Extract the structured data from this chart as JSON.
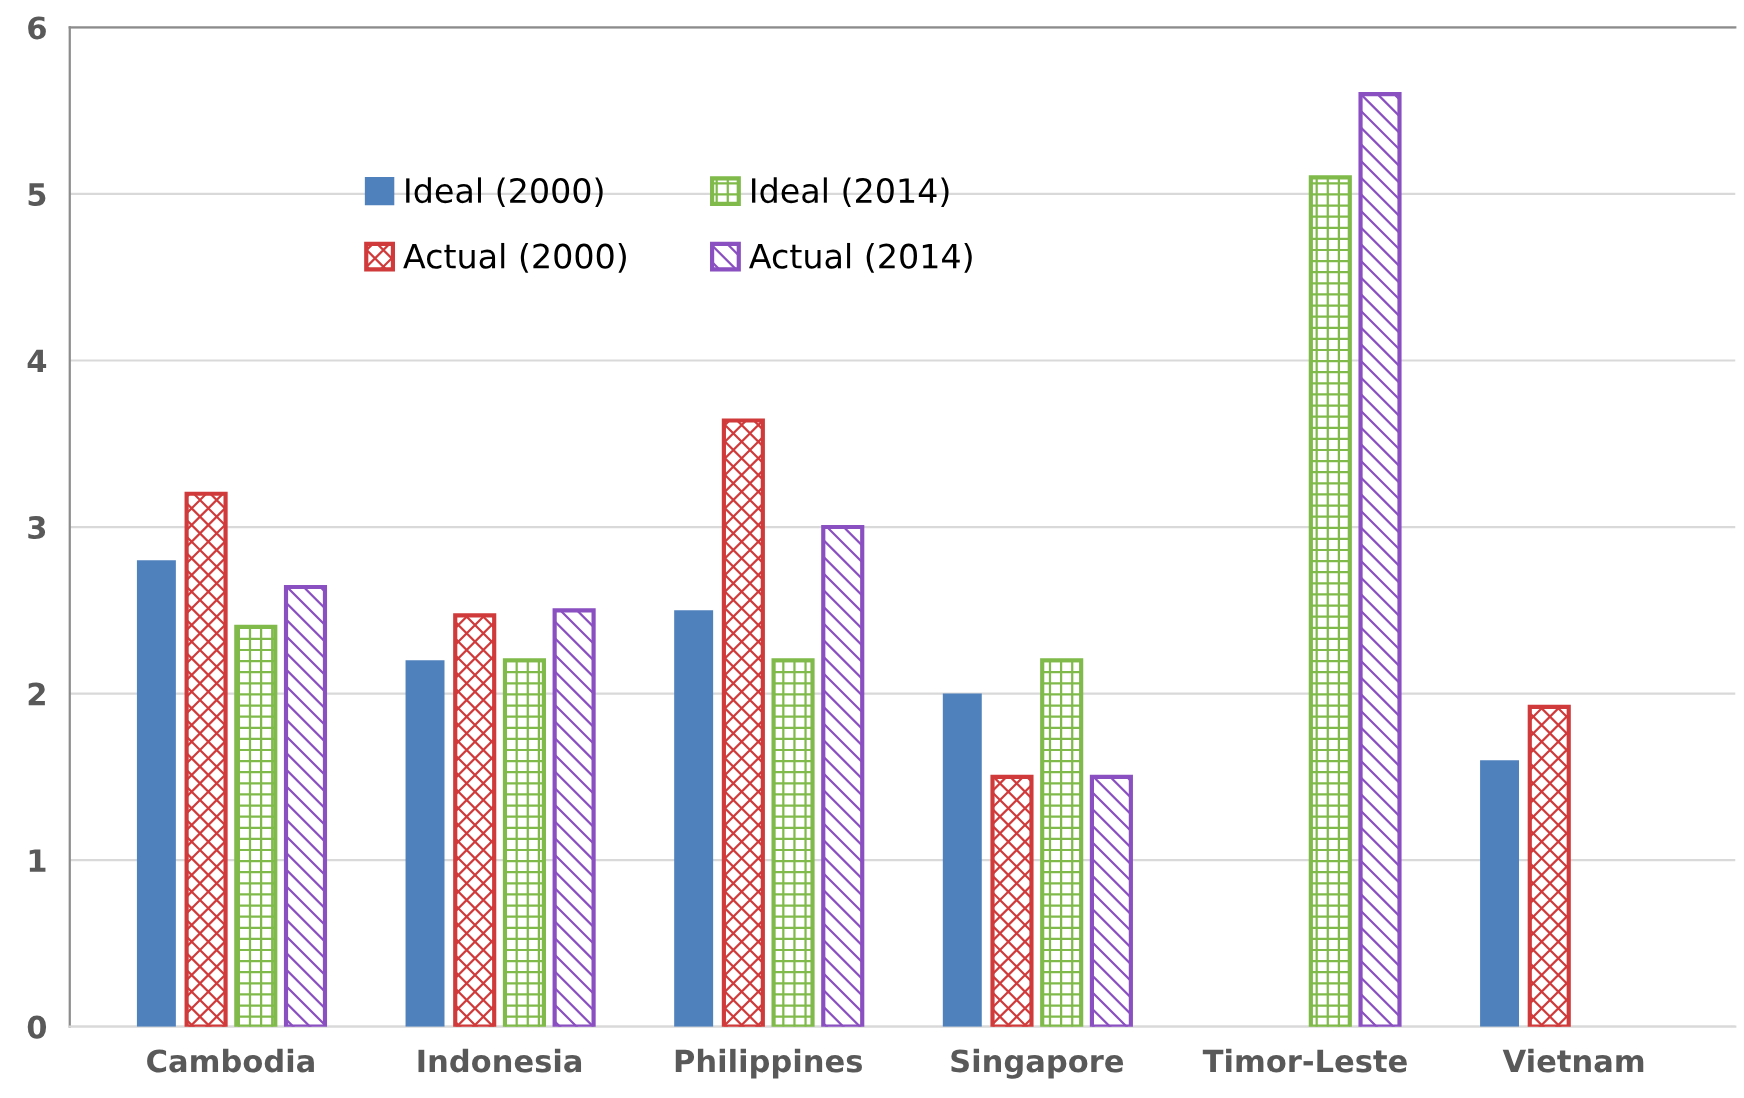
{
  "chart_data": {
    "type": "bar",
    "categories": [
      "Cambodia",
      "Indonesia",
      "Philippines",
      "Singapore",
      "Timor-Leste",
      "Vietnam"
    ],
    "series": [
      {
        "name": "Ideal (2000)",
        "color": "#4f81bd",
        "values": [
          2.8,
          2.2,
          2.5,
          2.0,
          null,
          1.6
        ]
      },
      {
        "name": "Actual (2000)",
        "color": "#d03a3a",
        "values": [
          3.2,
          2.47,
          3.64,
          1.5,
          null,
          1.92
        ]
      },
      {
        "name": "Ideal (2014)",
        "color": "#7fba4a",
        "values": [
          2.4,
          2.2,
          2.2,
          2.2,
          5.1,
          null
        ]
      },
      {
        "name": "Actual (2014)",
        "color": "#8a4fc0",
        "values": [
          2.64,
          2.5,
          3.0,
          1.5,
          5.6,
          null
        ]
      }
    ],
    "ylim": [
      0,
      6
    ],
    "yticks": [
      0,
      1,
      2,
      3,
      4,
      5,
      6
    ],
    "grid": "y",
    "legend": "top"
  }
}
